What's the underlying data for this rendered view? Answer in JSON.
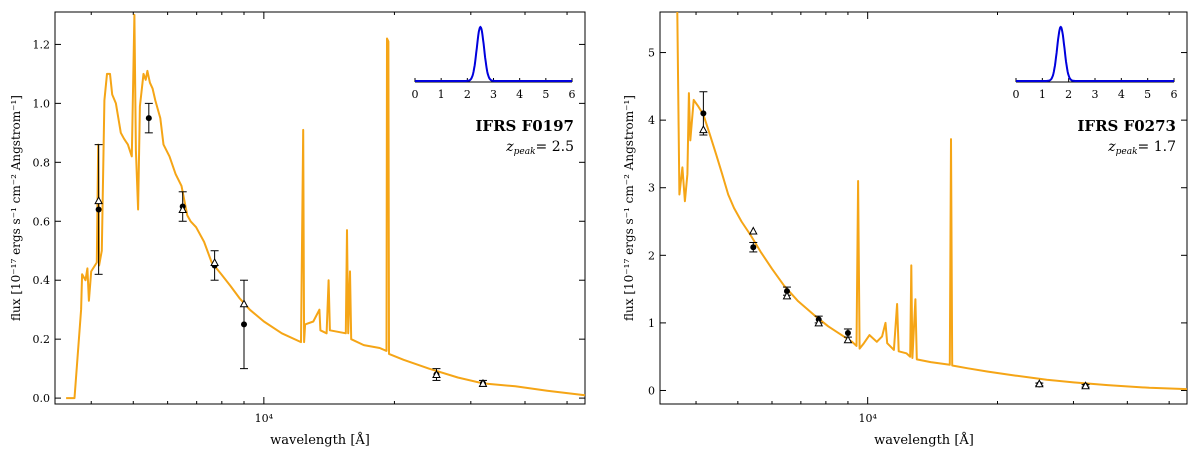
{
  "chart_data": [
    {
      "type": "line",
      "object": "IFRS F0197",
      "z_label": "z",
      "z_sub": "peak",
      "z_value": "= 2.5",
      "xlabel": "wavelength [Å]",
      "ylabel": "flux [10⁻¹⁷ ergs s⁻¹ cm⁻² Angstrom⁻¹]",
      "x_tick_label": "10⁴",
      "y_ticks": [
        "0.0",
        "0.2",
        "0.4",
        "0.6",
        "0.8",
        "1.0",
        "1.2"
      ],
      "ylim": [
        -0.02,
        1.31
      ],
      "xlim": [
        3300,
        55000
      ],
      "x_scale": "log",
      "line_color": "#f5a516",
      "sed_points": [
        [
          3500,
          0.0
        ],
        [
          3660,
          0.0
        ],
        [
          3790,
          0.3
        ],
        [
          3810,
          0.42
        ],
        [
          3880,
          0.4
        ],
        [
          3920,
          0.44
        ],
        [
          3950,
          0.33
        ],
        [
          4000,
          0.43
        ],
        [
          4120,
          0.46
        ],
        [
          4150,
          0.86
        ],
        [
          4170,
          0.45
        ],
        [
          4230,
          0.5
        ],
        [
          4290,
          1.01
        ],
        [
          4350,
          1.1
        ],
        [
          4420,
          1.1
        ],
        [
          4470,
          1.03
        ],
        [
          4560,
          1.0
        ],
        [
          4680,
          0.9
        ],
        [
          4760,
          0.88
        ],
        [
          4860,
          0.86
        ],
        [
          4960,
          0.82
        ],
        [
          5030,
          1.3
        ],
        [
          5070,
          0.84
        ],
        [
          5130,
          0.64
        ],
        [
          5180,
          0.99
        ],
        [
          5280,
          1.1
        ],
        [
          5340,
          1.08
        ],
        [
          5390,
          1.11
        ],
        [
          5460,
          1.07
        ],
        [
          5540,
          1.05
        ],
        [
          5620,
          1.01
        ],
        [
          5770,
          0.95
        ],
        [
          5870,
          0.86
        ],
        [
          6060,
          0.82
        ],
        [
          6260,
          0.76
        ],
        [
          6460,
          0.72
        ],
        [
          6660,
          0.62
        ],
        [
          6780,
          0.6
        ],
        [
          6980,
          0.58
        ],
        [
          7280,
          0.53
        ],
        [
          7580,
          0.46
        ],
        [
          7980,
          0.42
        ],
        [
          8380,
          0.38
        ],
        [
          8780,
          0.34
        ],
        [
          9280,
          0.3
        ],
        [
          10000,
          0.26
        ],
        [
          11000,
          0.22
        ],
        [
          12180,
          0.19
        ],
        [
          12320,
          0.91
        ],
        [
          12380,
          0.19
        ],
        [
          12450,
          0.25
        ],
        [
          13000,
          0.26
        ],
        [
          13430,
          0.3
        ],
        [
          13500,
          0.23
        ],
        [
          13950,
          0.22
        ],
        [
          14100,
          0.4
        ],
        [
          14200,
          0.23
        ],
        [
          15450,
          0.22
        ],
        [
          15550,
          0.57
        ],
        [
          15650,
          0.22
        ],
        [
          15800,
          0.43
        ],
        [
          15900,
          0.2
        ],
        [
          17000,
          0.18
        ],
        [
          18500,
          0.17
        ],
        [
          19180,
          0.16
        ],
        [
          19230,
          1.22
        ],
        [
          19370,
          1.21
        ],
        [
          19430,
          0.15
        ],
        [
          21000,
          0.13
        ],
        [
          24000,
          0.1
        ],
        [
          28000,
          0.07
        ],
        [
          32000,
          0.05
        ],
        [
          38000,
          0.04
        ],
        [
          45000,
          0.025
        ],
        [
          55000,
          0.01
        ]
      ],
      "photometry": [
        [
          4160,
          0.64,
          0.22
        ],
        [
          5430,
          0.95,
          0.05
        ],
        [
          6500,
          0.65,
          0.05
        ],
        [
          7700,
          0.45,
          0.05
        ],
        [
          9000,
          0.25,
          0.15
        ],
        [
          25000,
          0.08,
          0.02
        ],
        [
          32000,
          0.05,
          0.01
        ]
      ],
      "model_triangles": [
        [
          4160,
          0.67
        ],
        [
          6500,
          0.64
        ],
        [
          7700,
          0.46
        ],
        [
          9000,
          0.32
        ],
        [
          25000,
          0.08
        ],
        [
          32000,
          0.05
        ]
      ],
      "inset": {
        "x_ticks": [
          "0",
          "1",
          "2",
          "3",
          "4",
          "5",
          "6"
        ],
        "xlim": [
          0,
          6
        ],
        "peak": 2.5,
        "width": 0.14,
        "line_color": "#0000dd"
      }
    },
    {
      "type": "line",
      "object": "IFRS F0273",
      "z_label": "z",
      "z_sub": "peak",
      "z_value": "= 1.7",
      "xlabel": "wavelength [Å]",
      "ylabel": "flux [10⁻¹⁷ ergs s⁻¹ cm⁻² Angstrom⁻¹]",
      "x_tick_label": "10⁴",
      "y_ticks": [
        "0",
        "1",
        "2",
        "3",
        "4",
        "5"
      ],
      "ylim": [
        -0.2,
        5.6
      ],
      "xlim": [
        3300,
        55000
      ],
      "x_scale": "log",
      "line_color": "#f5a516",
      "sed_points": [
        [
          3620,
          5.6
        ],
        [
          3660,
          2.9
        ],
        [
          3720,
          3.3
        ],
        [
          3770,
          2.8
        ],
        [
          3820,
          3.2
        ],
        [
          3850,
          4.4
        ],
        [
          3880,
          3.7
        ],
        [
          3950,
          4.3
        ],
        [
          4050,
          4.2
        ],
        [
          4160,
          4.08
        ],
        [
          4300,
          3.8
        ],
        [
          4450,
          3.5
        ],
        [
          4600,
          3.2
        ],
        [
          4750,
          2.9
        ],
        [
          4900,
          2.7
        ],
        [
          5100,
          2.5
        ],
        [
          5350,
          2.3
        ],
        [
          5650,
          2.05
        ],
        [
          6000,
          1.8
        ],
        [
          6400,
          1.55
        ],
        [
          6900,
          1.32
        ],
        [
          7500,
          1.12
        ],
        [
          8100,
          0.95
        ],
        [
          8700,
          0.82
        ],
        [
          9200,
          0.72
        ],
        [
          9420,
          0.66
        ],
        [
          9500,
          3.1
        ],
        [
          9580,
          0.62
        ],
        [
          9800,
          0.7
        ],
        [
          10100,
          0.82
        ],
        [
          10500,
          0.72
        ],
        [
          10800,
          0.8
        ],
        [
          11000,
          1.0
        ],
        [
          11100,
          0.7
        ],
        [
          11500,
          0.6
        ],
        [
          11700,
          1.28
        ],
        [
          11800,
          0.58
        ],
        [
          12300,
          0.55
        ],
        [
          12550,
          0.5
        ],
        [
          12620,
          1.85
        ],
        [
          12700,
          0.48
        ],
        [
          12900,
          1.35
        ],
        [
          13000,
          0.46
        ],
        [
          14000,
          0.42
        ],
        [
          15500,
          0.38
        ],
        [
          15600,
          3.72
        ],
        [
          15700,
          0.37
        ],
        [
          17000,
          0.33
        ],
        [
          19000,
          0.28
        ],
        [
          22000,
          0.22
        ],
        [
          26000,
          0.16
        ],
        [
          30000,
          0.12
        ],
        [
          36000,
          0.08
        ],
        [
          45000,
          0.04
        ],
        [
          55000,
          0.02
        ]
      ],
      "photometry": [
        [
          4160,
          4.1,
          0.32
        ],
        [
          5430,
          2.12,
          0.07
        ],
        [
          6500,
          1.47,
          0.06
        ],
        [
          7700,
          1.05,
          0.05
        ],
        [
          9000,
          0.85,
          0.06
        ],
        [
          25000,
          0.09,
          0.02
        ],
        [
          32000,
          0.07,
          0.02
        ]
      ],
      "model_triangles": [
        [
          4160,
          3.86
        ],
        [
          5430,
          2.36
        ],
        [
          6500,
          1.4
        ],
        [
          7700,
          1.0
        ],
        [
          9000,
          0.75
        ],
        [
          25000,
          0.1
        ],
        [
          32000,
          0.07
        ]
      ],
      "inset": {
        "x_ticks": [
          "0",
          "1",
          "2",
          "3",
          "4",
          "5",
          "6"
        ],
        "xlim": [
          0,
          6
        ],
        "peak": 1.7,
        "width": 0.14,
        "line_color": "#0000dd"
      }
    }
  ]
}
